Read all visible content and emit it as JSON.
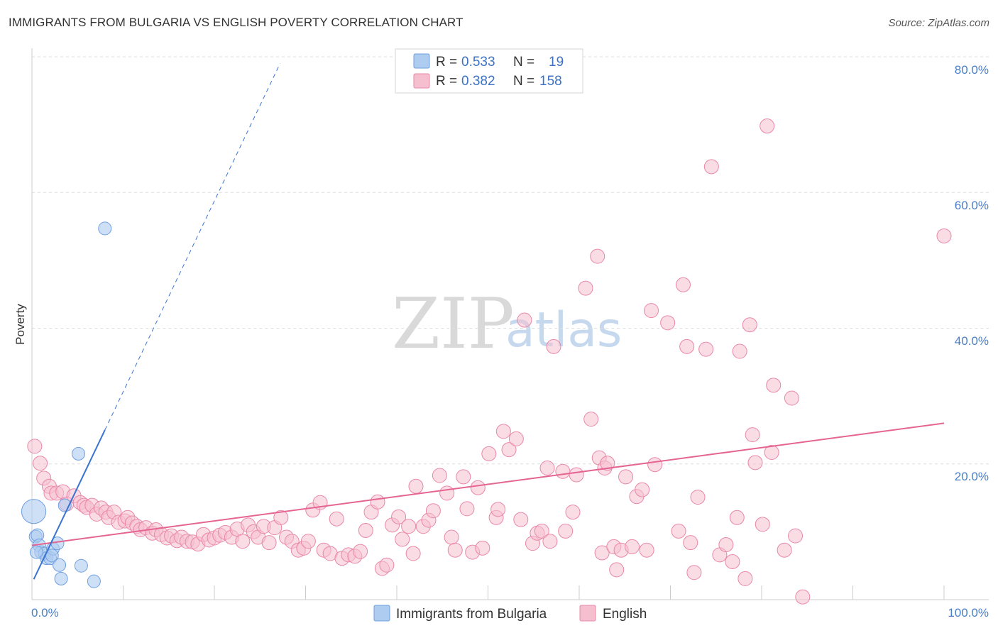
{
  "title": "IMMIGRANTS FROM BULGARIA VS ENGLISH POVERTY CORRELATION CHART",
  "source": "Source: ZipAtlas.com",
  "colors": {
    "blue": "#6f9fe0",
    "blue_fill": "#aecbf0",
    "blue_line": "#3a74d0",
    "pink": "#e987a8",
    "pink_fill": "#f6bfd0",
    "pink_line": "#e56592",
    "grid": "#dddddd",
    "axis_label": "#4a7fc8"
  },
  "legend": {
    "r_label": "R =",
    "n_label": "N =",
    "series": [
      {
        "r": "0.533",
        "n": "19"
      },
      {
        "r": "0.382",
        "n": "158"
      }
    ]
  },
  "watermark": {
    "zip": "ZIP",
    "atlas": "atlas"
  },
  "chart_data": {
    "type": "scatter",
    "title": "IMMIGRANTS FROM BULGARIA VS ENGLISH POVERTY CORRELATION CHART",
    "xlabel": "",
    "ylabel": "Poverty",
    "xlim": [
      0,
      100
    ],
    "ylim": [
      0,
      80
    ],
    "x_tick_labels": [
      "0.0%",
      "100.0%"
    ],
    "y_ticks": [
      20,
      40,
      60,
      80
    ],
    "y_tick_labels": [
      "20.0%",
      "40.0%",
      "60.0%",
      "80.0%"
    ],
    "grid": true,
    "series": [
      {
        "name": "Immigrants from Bulgaria",
        "r": 0.533,
        "n": 19,
        "trend": {
          "x0": 0.2,
          "y0": 3.0,
          "x1": 8.0,
          "y1": 25.0,
          "dash_to_x": 27.2,
          "dash_to_y": 79.0
        },
        "points": [
          [
            0.2,
            13.0,
            1.8
          ],
          [
            0.4,
            9.3,
            1.0
          ],
          [
            0.6,
            9.5,
            1.0
          ],
          [
            0.8,
            8.0,
            1.0
          ],
          [
            1.0,
            7.0,
            1.0
          ],
          [
            1.4,
            6.8,
            1.0
          ],
          [
            1.6,
            6.1,
            1.0
          ],
          [
            2.0,
            6.1,
            1.0
          ],
          [
            2.3,
            7.5,
            1.0
          ],
          [
            2.2,
            6.5,
            1.0
          ],
          [
            2.8,
            8.3,
            1.0
          ],
          [
            3.0,
            5.1,
            1.0
          ],
          [
            3.2,
            3.1,
            1.0
          ],
          [
            3.6,
            13.9,
            1.0
          ],
          [
            5.1,
            21.5,
            1.0
          ],
          [
            5.4,
            5.0,
            1.0
          ],
          [
            6.8,
            2.7,
            1.0
          ],
          [
            8.0,
            54.7,
            1.0
          ],
          [
            0.5,
            7.0,
            1.0
          ]
        ]
      },
      {
        "name": "English",
        "r": 0.382,
        "n": 158,
        "trend": {
          "x0": 0.0,
          "y0": 8.0,
          "x1": 100.0,
          "y1": 26.0
        },
        "points": [
          [
            0.3,
            22.6
          ],
          [
            0.9,
            20.1
          ],
          [
            1.3,
            17.9
          ],
          [
            1.9,
            16.7
          ],
          [
            2.1,
            15.7
          ],
          [
            2.7,
            15.7
          ],
          [
            3.4,
            15.9
          ],
          [
            3.8,
            14.1
          ],
          [
            4.6,
            15.3
          ],
          [
            5.3,
            14.3
          ],
          [
            5.7,
            13.9
          ],
          [
            6.0,
            13.6
          ],
          [
            6.6,
            13.9
          ],
          [
            7.1,
            12.6
          ],
          [
            7.6,
            13.5
          ],
          [
            8.1,
            12.9
          ],
          [
            8.4,
            12.1
          ],
          [
            9.0,
            12.9
          ],
          [
            9.5,
            11.4
          ],
          [
            10.2,
            11.6
          ],
          [
            10.5,
            12.1
          ],
          [
            11.0,
            11.3
          ],
          [
            11.5,
            10.8
          ],
          [
            11.9,
            10.3
          ],
          [
            12.5,
            10.6
          ],
          [
            13.2,
            9.8
          ],
          [
            13.6,
            10.3
          ],
          [
            14.2,
            9.6
          ],
          [
            14.8,
            9.1
          ],
          [
            15.3,
            9.4
          ],
          [
            15.9,
            8.7
          ],
          [
            16.4,
            9.2
          ],
          [
            17.0,
            8.6
          ],
          [
            17.6,
            8.5
          ],
          [
            18.2,
            8.2
          ],
          [
            18.8,
            9.6
          ],
          [
            19.4,
            8.8
          ],
          [
            20.0,
            9.1
          ],
          [
            20.6,
            9.5
          ],
          [
            21.2,
            9.9
          ],
          [
            21.9,
            9.2
          ],
          [
            22.5,
            10.4
          ],
          [
            23.1,
            8.6
          ],
          [
            23.7,
            11.0
          ],
          [
            24.3,
            10.0
          ],
          [
            24.8,
            9.2
          ],
          [
            25.4,
            10.8
          ],
          [
            26.0,
            8.4
          ],
          [
            26.6,
            10.6
          ],
          [
            27.3,
            12.1
          ],
          [
            27.9,
            9.2
          ],
          [
            28.5,
            8.6
          ],
          [
            29.2,
            7.3
          ],
          [
            29.8,
            7.6
          ],
          [
            30.3,
            8.6
          ],
          [
            30.8,
            13.2
          ],
          [
            31.6,
            14.3
          ],
          [
            32.0,
            7.3
          ],
          [
            32.7,
            6.8
          ],
          [
            33.4,
            11.9
          ],
          [
            34.0,
            6.1
          ],
          [
            34.7,
            6.6
          ],
          [
            35.4,
            6.4
          ],
          [
            36.0,
            7.1
          ],
          [
            36.6,
            10.2
          ],
          [
            37.2,
            12.9
          ],
          [
            37.9,
            14.4
          ],
          [
            38.4,
            4.6
          ],
          [
            38.9,
            5.1
          ],
          [
            39.5,
            11.0
          ],
          [
            40.2,
            12.2
          ],
          [
            40.6,
            8.9
          ],
          [
            41.3,
            10.8
          ],
          [
            41.8,
            6.8
          ],
          [
            42.1,
            16.7
          ],
          [
            42.9,
            10.8
          ],
          [
            43.5,
            11.7
          ],
          [
            44.0,
            13.1
          ],
          [
            44.7,
            18.3
          ],
          [
            45.5,
            15.7
          ],
          [
            46.0,
            9.2
          ],
          [
            46.4,
            7.3
          ],
          [
            47.3,
            18.1
          ],
          [
            47.7,
            13.4
          ],
          [
            48.3,
            7.0
          ],
          [
            48.9,
            16.5
          ],
          [
            49.4,
            7.6
          ],
          [
            50.1,
            21.5
          ],
          [
            50.9,
            12.1
          ],
          [
            51.1,
            13.3
          ],
          [
            51.7,
            24.8
          ],
          [
            52.3,
            22.1
          ],
          [
            53.1,
            23.7
          ],
          [
            53.6,
            11.8
          ],
          [
            54.0,
            41.2
          ],
          [
            54.9,
            8.3
          ],
          [
            55.4,
            9.8
          ],
          [
            55.9,
            10.1
          ],
          [
            56.5,
            19.4
          ],
          [
            56.8,
            8.6
          ],
          [
            57.2,
            37.3
          ],
          [
            58.2,
            18.9
          ],
          [
            58.5,
            10.1
          ],
          [
            59.3,
            12.9
          ],
          [
            59.7,
            18.4
          ],
          [
            60.7,
            45.9
          ],
          [
            61.3,
            26.6
          ],
          [
            62.0,
            50.6
          ],
          [
            62.2,
            20.9
          ],
          [
            62.5,
            6.9
          ],
          [
            62.8,
            19.4
          ],
          [
            63.1,
            20.1
          ],
          [
            63.8,
            7.8
          ],
          [
            64.1,
            4.4
          ],
          [
            64.6,
            7.3
          ],
          [
            65.1,
            18.1
          ],
          [
            65.8,
            7.8
          ],
          [
            66.3,
            15.2
          ],
          [
            66.9,
            16.2
          ],
          [
            67.4,
            7.3
          ],
          [
            67.9,
            42.6
          ],
          [
            68.3,
            19.9
          ],
          [
            69.7,
            40.8
          ],
          [
            70.9,
            10.1
          ],
          [
            71.4,
            46.4
          ],
          [
            71.8,
            37.3
          ],
          [
            72.2,
            8.4
          ],
          [
            72.6,
            4.0
          ],
          [
            73.0,
            15.1
          ],
          [
            73.9,
            36.9
          ],
          [
            74.5,
            63.8
          ],
          [
            75.4,
            6.6
          ],
          [
            76.1,
            8.1
          ],
          [
            76.8,
            5.6
          ],
          [
            77.3,
            12.1
          ],
          [
            77.6,
            36.6
          ],
          [
            78.2,
            3.1
          ],
          [
            78.7,
            40.5
          ],
          [
            79.0,
            24.3
          ],
          [
            79.3,
            20.2
          ],
          [
            80.1,
            11.1
          ],
          [
            80.6,
            69.8
          ],
          [
            81.1,
            21.7
          ],
          [
            81.3,
            31.6
          ],
          [
            82.5,
            7.3
          ],
          [
            83.3,
            29.7
          ],
          [
            83.7,
            9.4
          ],
          [
            84.5,
            0.4
          ],
          [
            100.0,
            53.6
          ]
        ]
      }
    ]
  },
  "bottom_legend": [
    "Immigrants from Bulgaria",
    "English"
  ]
}
